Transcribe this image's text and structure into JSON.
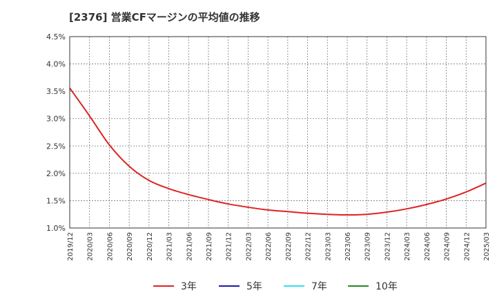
{
  "chart_data": {
    "type": "line",
    "title": "[2376]  営業CFマージンの平均値の推移",
    "xlabel": "",
    "ylabel": "",
    "ylim": [
      1.0,
      4.5
    ],
    "y_ticks": [
      "1.0%",
      "1.5%",
      "2.0%",
      "2.5%",
      "3.0%",
      "3.5%",
      "4.0%",
      "4.5%"
    ],
    "x_ticks": [
      "2019/12",
      "2020/03",
      "2020/06",
      "2020/09",
      "2020/12",
      "2021/03",
      "2021/06",
      "2021/09",
      "2021/12",
      "2022/03",
      "2022/06",
      "2022/09",
      "2022/12",
      "2023/03",
      "2023/06",
      "2023/09",
      "2023/12",
      "2024/03",
      "2024/06",
      "2024/09",
      "2024/12",
      "2025/03"
    ],
    "grid": true,
    "legend_position": "bottom",
    "series": [
      {
        "name": "3年",
        "color": "#dd2222",
        "points": [
          [
            "2019/12",
            3.56
          ],
          [
            "2020/03",
            3.05
          ],
          [
            "2020/06",
            2.52
          ],
          [
            "2020/09",
            2.13
          ],
          [
            "2020/12",
            1.87
          ],
          [
            "2021/03",
            1.72
          ],
          [
            "2021/06",
            1.61
          ],
          [
            "2021/09",
            1.52
          ],
          [
            "2021/12",
            1.44
          ],
          [
            "2022/03",
            1.38
          ],
          [
            "2022/06",
            1.33
          ],
          [
            "2022/09",
            1.3
          ],
          [
            "2022/12",
            1.27
          ],
          [
            "2023/03",
            1.25
          ],
          [
            "2023/06",
            1.24
          ],
          [
            "2023/09",
            1.25
          ],
          [
            "2023/12",
            1.29
          ],
          [
            "2024/03",
            1.35
          ],
          [
            "2024/06",
            1.43
          ],
          [
            "2024/09",
            1.53
          ],
          [
            "2024/12",
            1.66
          ],
          [
            "2025/03",
            1.82
          ]
        ]
      },
      {
        "name": "5年",
        "color": "#1a1aaa",
        "points": []
      },
      {
        "name": "7年",
        "color": "#33e0ee",
        "points": []
      },
      {
        "name": "10年",
        "color": "#228822",
        "points": []
      }
    ]
  }
}
